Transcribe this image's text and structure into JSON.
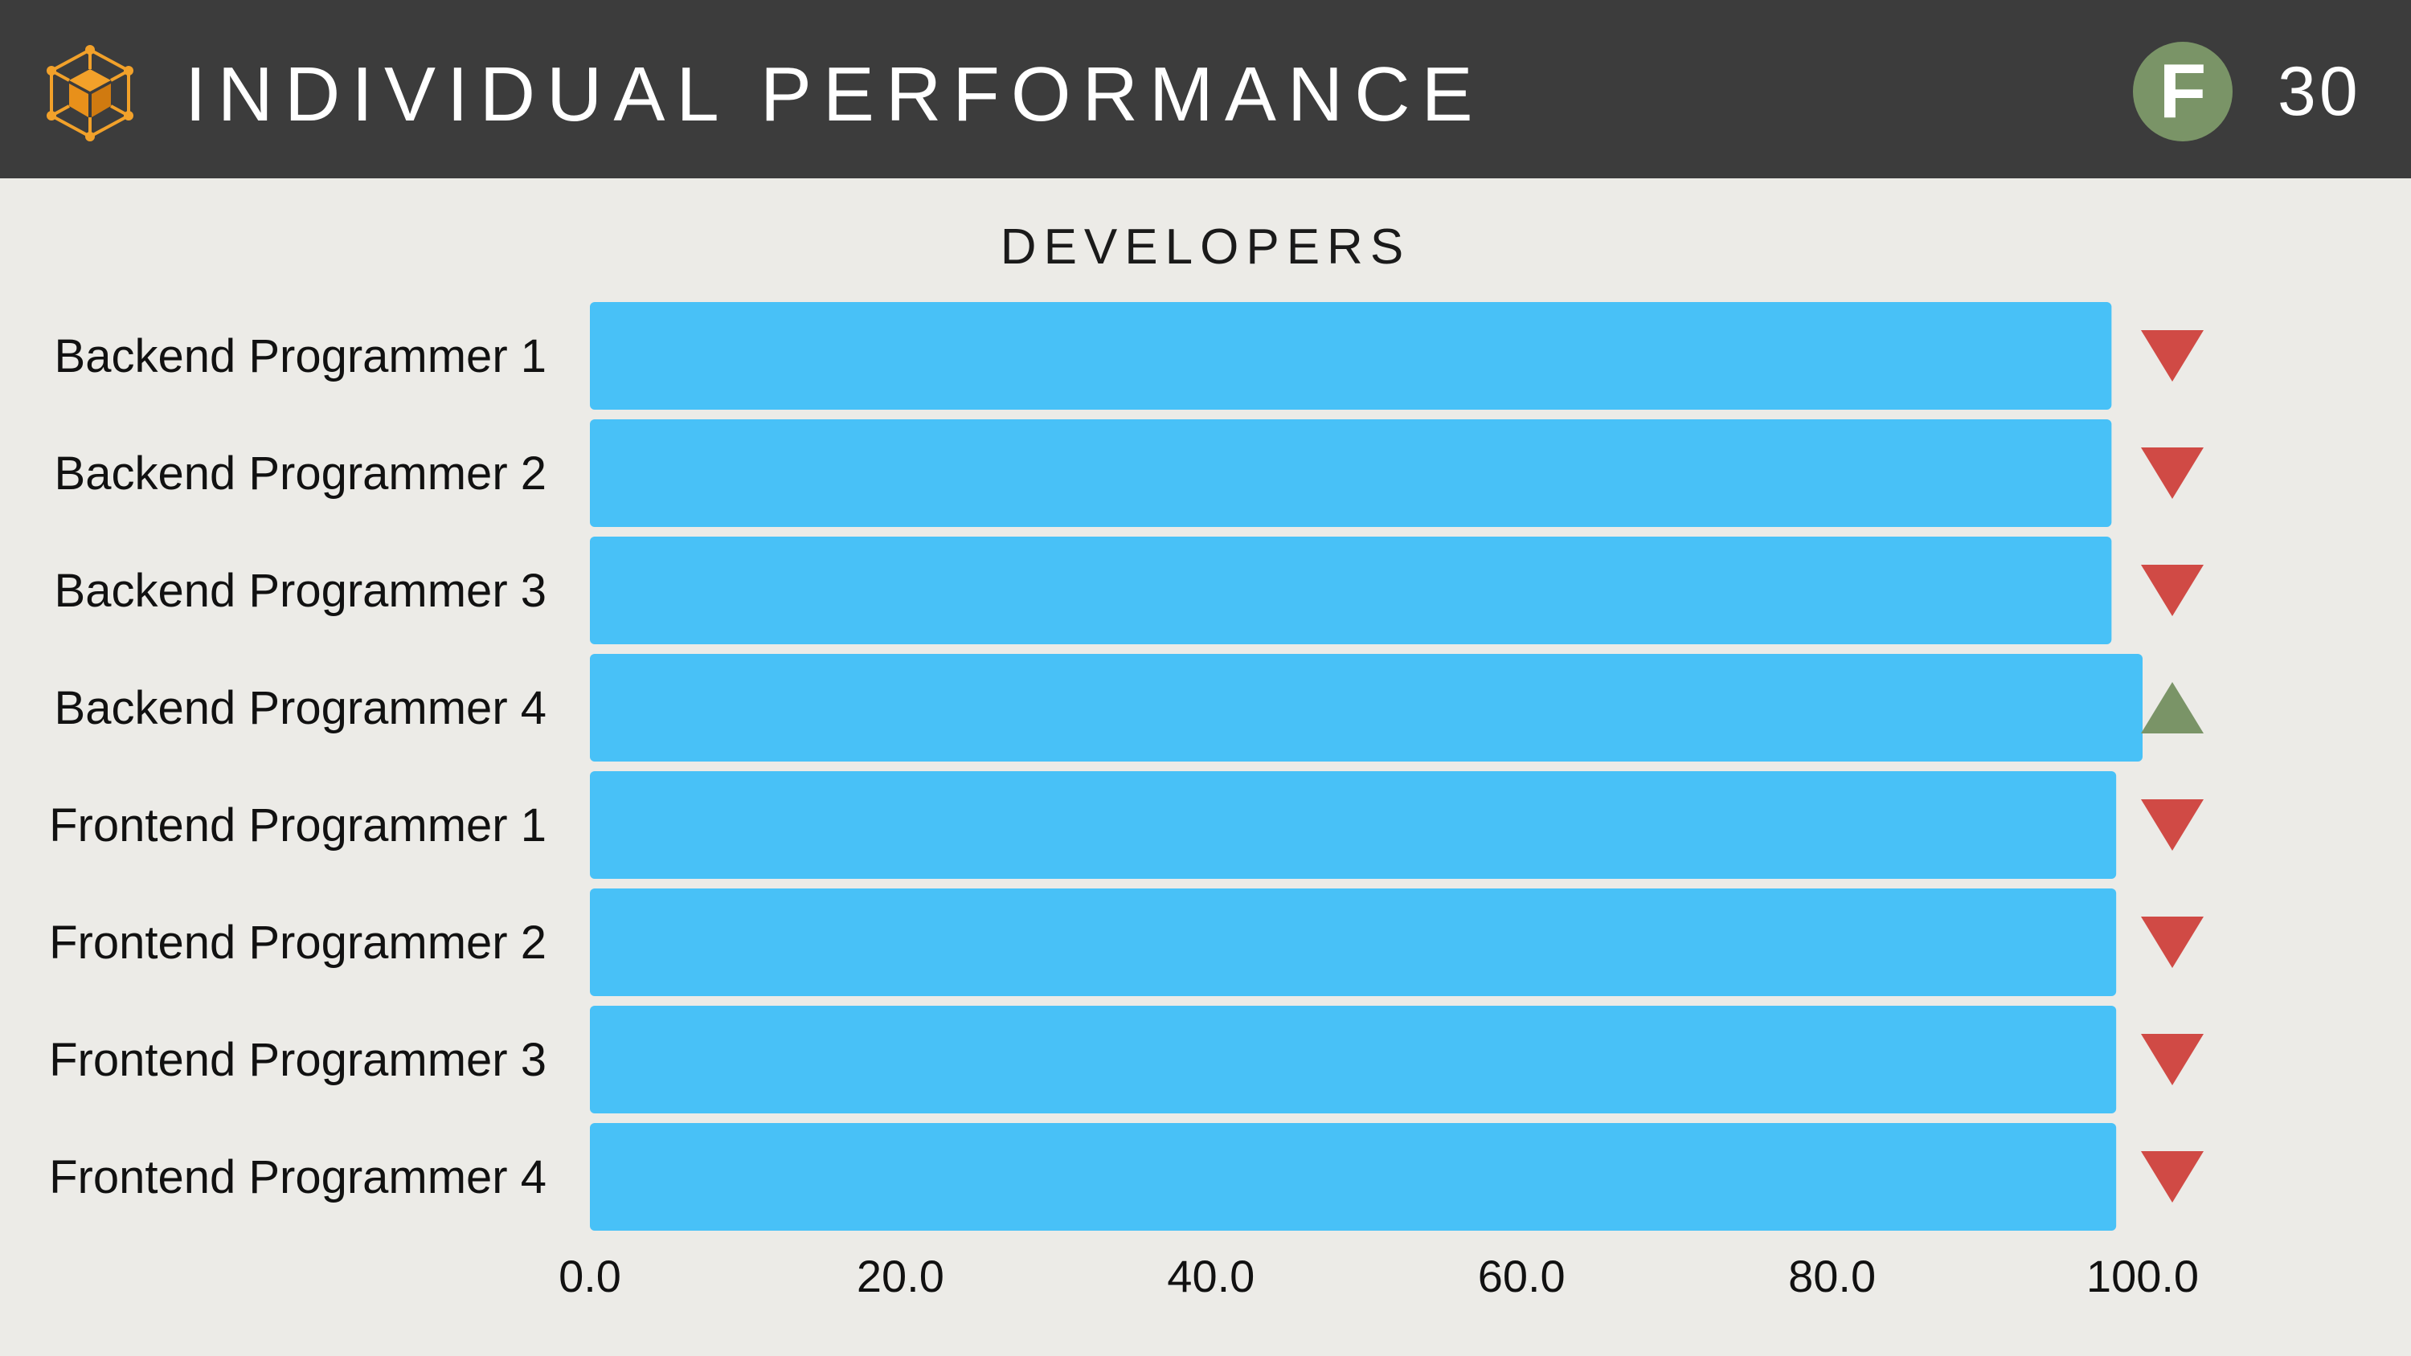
{
  "header": {
    "title": "INDIVIDUAL PERFORMANCE",
    "grade": "F",
    "score": "30",
    "logo_icon": "cube-network-icon",
    "colors": {
      "bar": "#48c1f7",
      "down": "#d04a45",
      "up": "#7a9467",
      "header_bg": "#3c3c3c",
      "logo": "#f2a12a"
    }
  },
  "chart_data": {
    "type": "bar",
    "orientation": "horizontal",
    "title": "DEVELOPERS",
    "categories": [
      "Backend Programmer 1",
      "Backend Programmer 2",
      "Backend Programmer 3",
      "Backend Programmer 4",
      "Frontend Programmer 1",
      "Frontend Programmer 2",
      "Frontend Programmer 3",
      "Frontend Programmer 4"
    ],
    "values": [
      98.0,
      98.0,
      98.0,
      100.0,
      98.3,
      98.3,
      98.3,
      98.3
    ],
    "trend": [
      "down",
      "down",
      "down",
      "up",
      "down",
      "down",
      "down",
      "down"
    ],
    "xlim": [
      0,
      100
    ],
    "xticks": [
      "0.0",
      "20.0",
      "40.0",
      "60.0",
      "80.0",
      "100.0"
    ],
    "grid": false,
    "legend": "none"
  }
}
